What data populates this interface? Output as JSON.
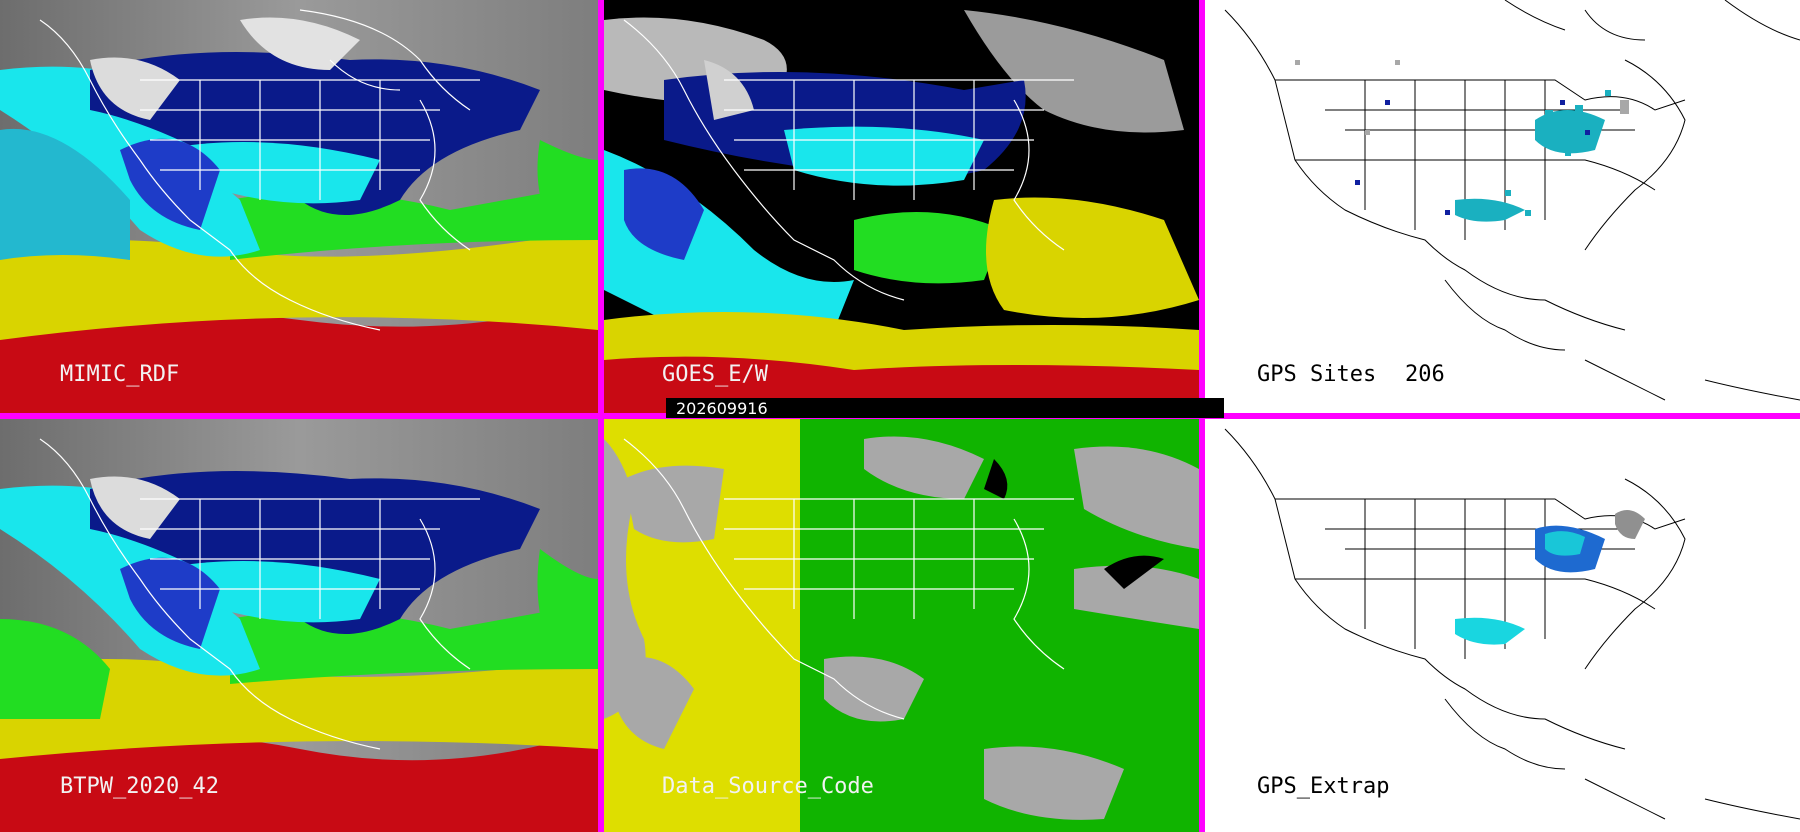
{
  "panels": {
    "mimic": {
      "label": "MIMIC_RDF"
    },
    "goes": {
      "label": "GOES_E/W"
    },
    "gps_sites": {
      "label": "GPS Sites",
      "count": "206"
    },
    "btpw": {
      "label": "BTPW_2020_42"
    },
    "data_source": {
      "label": "Data_Source_Code"
    },
    "gps_extrap": {
      "label": "GPS_Extrap"
    }
  },
  "timestamp": "202609916",
  "colors": {
    "divider": "#ff00ff",
    "deep_blue": "#0a1a8a",
    "blue": "#1e3cc8",
    "cyan": "#19e6ec",
    "green": "#22dd22",
    "yellow": "#d9d400",
    "red": "#c80a14",
    "gray": "#a8a8a8",
    "dsc_yellow": "#dede00",
    "dsc_green": "#10b400"
  }
}
